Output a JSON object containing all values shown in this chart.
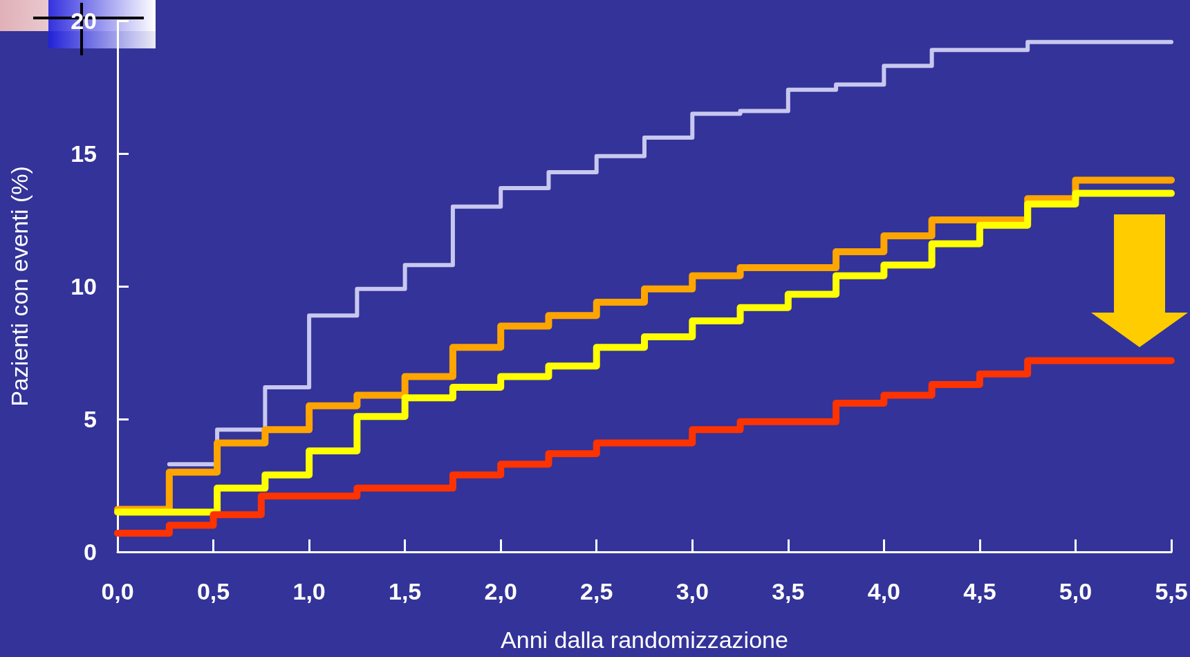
{
  "chart_data": {
    "type": "step",
    "xlabel": "Anni dalla randomizzazione",
    "ylabel": "Pazienti con eventi (%)",
    "xlim": [
      0,
      5.5
    ],
    "xticks": [
      {
        "value": 0,
        "label": "0,0"
      },
      {
        "value": 0.5,
        "label": "0,5"
      },
      {
        "value": 1,
        "label": "1,0"
      },
      {
        "value": 1.5,
        "label": "1,5"
      },
      {
        "value": 2,
        "label": "2,0"
      },
      {
        "value": 2.5,
        "label": "2,5"
      },
      {
        "value": 3,
        "label": "3,0"
      },
      {
        "value": 3.5,
        "label": "3,5"
      },
      {
        "value": 4,
        "label": "4,0"
      },
      {
        "value": 4.5,
        "label": "4,5"
      },
      {
        "value": 5,
        "label": "5,0"
      },
      {
        "value": 5.5,
        "label": "5,5"
      }
    ],
    "ylim": [
      0,
      20
    ],
    "yticks": [
      0,
      5,
      10,
      15,
      20
    ],
    "grid": false,
    "marker": "none",
    "line_style": "solid",
    "series": [
      {
        "color": "#c8c8f0",
        "x": [
          0.27,
          0.52,
          0.77,
          1.0,
          1.25,
          1.5,
          1.75,
          2.0,
          2.25,
          2.5,
          2.75,
          3.0,
          3.25,
          3.5,
          3.75,
          4.0,
          4.25,
          4.75,
          5.5
        ],
        "values": [
          3.3,
          4.6,
          6.2,
          8.9,
          9.9,
          10.8,
          13.0,
          13.7,
          14.3,
          14.9,
          15.6,
          16.5,
          16.6,
          17.4,
          17.6,
          18.3,
          18.9,
          19.2,
          19.2
        ]
      },
      {
        "color": "#ffa500",
        "x": [
          0,
          0.27,
          0.52,
          0.77,
          1.0,
          1.25,
          1.5,
          1.75,
          2.0,
          2.25,
          2.5,
          2.75,
          3.0,
          3.25,
          3.75,
          4.0,
          4.25,
          4.75,
          5.0,
          5.5
        ],
        "values": [
          1.6,
          3.0,
          4.1,
          4.6,
          5.5,
          5.9,
          6.6,
          7.7,
          8.5,
          8.9,
          9.4,
          9.9,
          10.4,
          10.7,
          11.3,
          11.9,
          12.5,
          13.3,
          14.0,
          14.0
        ]
      },
      {
        "color": "#ffff00",
        "x": [
          0,
          0.52,
          0.77,
          1.0,
          1.25,
          1.5,
          1.75,
          2.0,
          2.25,
          2.5,
          2.75,
          3.0,
          3.25,
          3.5,
          3.75,
          4.0,
          4.25,
          4.5,
          4.75,
          5.0,
          5.5
        ],
        "values": [
          1.5,
          2.4,
          2.9,
          3.8,
          5.1,
          5.8,
          6.2,
          6.6,
          7.0,
          7.7,
          8.1,
          8.7,
          9.2,
          9.7,
          10.4,
          10.8,
          11.6,
          12.3,
          13.1,
          13.5,
          13.5
        ]
      },
      {
        "color": "#ff3300",
        "x": [
          0,
          0.27,
          0.5,
          0.75,
          1.25,
          1.75,
          2.0,
          2.25,
          2.5,
          3.0,
          3.25,
          3.75,
          4.0,
          4.25,
          4.5,
          4.75,
          5.5
        ],
        "values": [
          0.7,
          1.0,
          1.4,
          2.1,
          2.4,
          2.9,
          3.3,
          3.7,
          4.1,
          4.6,
          4.9,
          5.6,
          5.9,
          6.3,
          6.7,
          7.2,
          7.2
        ]
      }
    ]
  }
}
